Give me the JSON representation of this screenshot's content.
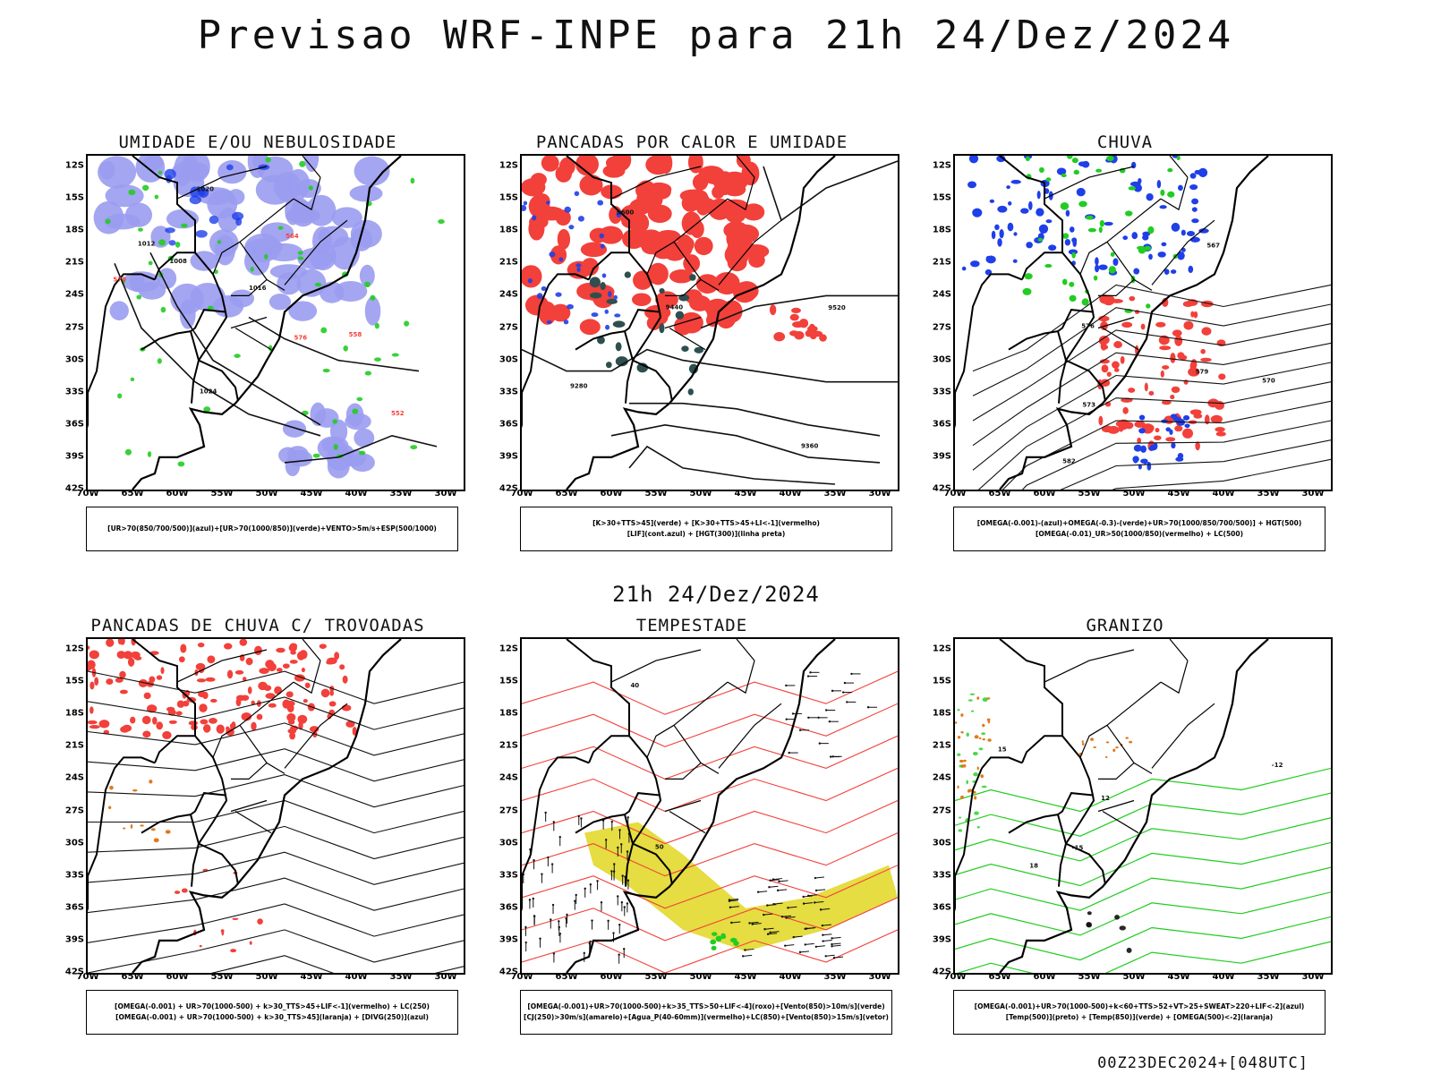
{
  "main_title": "Previsao WRF-INPE  para 21h 24/Dez/2024",
  "mid_title": "21h 24/Dez/2024",
  "footer": "00Z23DEC2024+[048UTC]",
  "lat_labels": [
    "12S",
    "15S",
    "18S",
    "21S",
    "24S",
    "27S",
    "30S",
    "33S",
    "36S",
    "39S",
    "42S"
  ],
  "lon_labels": [
    "70W",
    "65W",
    "60W",
    "55W",
    "50W",
    "45W",
    "40W",
    "35W",
    "30W"
  ],
  "colors": {
    "red": "#f2403a",
    "green": "#22cc22",
    "blue": "#1f3fe8",
    "lavender": "#9a9cf0",
    "dark_teal": "#2f4f4f",
    "yellow": "#e2d92c",
    "orange": "#e07a1c",
    "purple": "#a020c0"
  },
  "panels": [
    {
      "title": "UMIDADE E/OU NEBULOSIDADE",
      "legend": [
        "[UR>70(850/700/500)](azul)+[UR>70(1000/850)](verde)+VENTO>5m/s+ESP(500/1000)"
      ],
      "contour_labels": [
        "1008",
        "1012",
        "1016",
        "1020",
        "1024",
        "564",
        "570",
        "576",
        "552",
        "558"
      ]
    },
    {
      "title": "PANCADAS POR CALOR E UMIDADE",
      "legend": [
        "[K>30+TTS>45](verde) + [K>30+TTS>45+LI<-1](vermelho)",
        "[LIF](cont.azul) + [HGT(300)](linha preta)"
      ],
      "contour_labels": [
        "9600",
        "9520",
        "9440",
        "9360",
        "9280"
      ]
    },
    {
      "title": "CHUVA",
      "legend": [
        "[OMEGA(-0.001)-(azul)+OMEGA(-0.3)-(verde)+UR>70(1000/850/700/500)] + HGT(500)",
        "[OMEGA(-0.01)_UR>50(1000/850)(vermelho) + LC(500)"
      ],
      "contour_labels": [
        "582",
        "579",
        "576",
        "573",
        "570",
        "567"
      ]
    },
    {
      "title": "PANCADAS DE CHUVA C/ TROVOADAS",
      "legend": [
        "[OMEGA(-0.001) + UR>70(1000-500) + k>30_TTS>45+LIF<-1](vermelho) + LC(250)",
        "[OMEGA(-0.001) + UR>70(1000-500) + k>30_TTS>45](laranja) + [DIVG(250)](azul)"
      ],
      "contour_labels": []
    },
    {
      "title": "TEMPESTADE",
      "legend": [
        "[OMEGA(-0.001)+UR>70(1000-500)+k>35_TTS>50+LIF<-4](roxo)+[Vento(850)>10m/s](verde)",
        "[CJ(250)>30m/s](amarelo)+[Agua_P(40-60mm)](vermelho)+LC(850)+[Vento(850)>15m/s](vetor)"
      ],
      "contour_labels": [
        "50",
        "40"
      ]
    },
    {
      "title": "GRANIZO",
      "legend": [
        "[OMEGA(-0.001)+UR>70(1000-500)+k<60+TTS>52+VT>25+SWEAT>220+LIF<-2](azul)",
        "[Temp(500)](preto) + [Temp(850)](verde) + [OMEGA(500)<-2](laranja)"
      ],
      "contour_labels": [
        "12",
        "15",
        "18",
        "-12",
        "-15"
      ]
    }
  ]
}
